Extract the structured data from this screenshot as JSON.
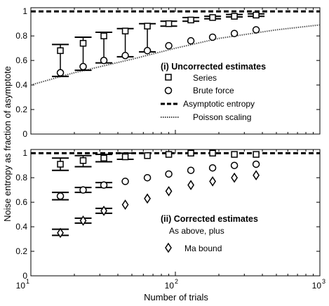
{
  "figure": {
    "ylabel": "Noise entropy as fraction of asymptote",
    "xlabel": "Number of trials",
    "x_ticks": [
      {
        "base": "10",
        "exp": "1"
      },
      {
        "base": "10",
        "exp": "2"
      },
      {
        "base": "10",
        "exp": "3"
      }
    ]
  },
  "chart_data": [
    {
      "type": "scatter",
      "panel": "top",
      "xscale": "log",
      "xlim": [
        10,
        1000
      ],
      "ylim": [
        0,
        1.03
      ],
      "yticks": [
        "0",
        "0.2",
        "0.4",
        "0.6",
        "0.8",
        "1"
      ],
      "ytick_values": [
        0,
        0.2,
        0.4,
        0.6,
        0.8,
        1
      ],
      "grid": false,
      "legend_position": "center-right",
      "legend_title": "(i) Uncorrected estimates",
      "legend": [
        {
          "label": "Series",
          "marker": "square"
        },
        {
          "label": "Brute force",
          "marker": "circle"
        },
        {
          "label": "Asymptotic entropy",
          "marker": "dashed-line"
        },
        {
          "label": "Poisson scaling",
          "marker": "dotted-line"
        }
      ],
      "asymptote": 1,
      "poisson_scaling": {
        "x": [
          10,
          20,
          50,
          100,
          200,
          500,
          1000
        ],
        "y": [
          0.4,
          0.5,
          0.61,
          0.7,
          0.78,
          0.85,
          0.89
        ]
      },
      "series": [
        {
          "name": "Series",
          "marker": "square",
          "x": [
            16,
            23,
            32,
            45,
            64,
            90,
            128,
            181,
            256,
            362
          ],
          "y": [
            0.68,
            0.74,
            0.8,
            0.84,
            0.88,
            0.9,
            0.93,
            0.95,
            0.96,
            0.97
          ]
        },
        {
          "name": "Brute force",
          "marker": "circle",
          "x": [
            16,
            23,
            32,
            45,
            64,
            90,
            128,
            181,
            256,
            362
          ],
          "y": [
            0.5,
            0.55,
            0.6,
            0.64,
            0.68,
            0.72,
            0.76,
            0.79,
            0.82,
            0.85
          ]
        }
      ],
      "error_bars": [
        {
          "x": 16,
          "low": 0.47,
          "high": 0.73
        },
        {
          "x": 23,
          "low": 0.52,
          "high": 0.79
        },
        {
          "x": 32,
          "low": 0.58,
          "high": 0.83
        },
        {
          "x": 45,
          "low": 0.63,
          "high": 0.86
        },
        {
          "x": 64,
          "low": 0.67,
          "high": 0.9
        },
        {
          "x": 90,
          "low": 0.88,
          "high": 0.92
        },
        {
          "x": 128,
          "low": 0.92,
          "high": 0.95
        },
        {
          "x": 181,
          "low": 0.94,
          "high": 0.96
        },
        {
          "x": 256,
          "low": 0.955,
          "high": 0.975
        },
        {
          "x": 362,
          "low": 0.96,
          "high": 0.98
        }
      ]
    },
    {
      "type": "scatter",
      "panel": "bottom",
      "xscale": "log",
      "xlim": [
        10,
        1000
      ],
      "ylim": [
        0,
        1.03
      ],
      "yticks": [
        "0",
        "0.2",
        "0.4",
        "0.6",
        "0.8",
        "1"
      ],
      "ytick_values": [
        0,
        0.2,
        0.4,
        0.6,
        0.8,
        1
      ],
      "grid": false,
      "legend_position": "lower-right",
      "legend_title": "(ii) Corrected estimates",
      "legend_subtitle": "As above, plus",
      "legend": [
        {
          "label": "Ma bound",
          "marker": "diamond"
        }
      ],
      "asymptote": 1,
      "series": [
        {
          "name": "Series",
          "marker": "square",
          "x": [
            16,
            23,
            32,
            45,
            64,
            90,
            128,
            181,
            256,
            362
          ],
          "y": [
            0.91,
            0.94,
            0.96,
            0.97,
            0.98,
            0.99,
            1.0,
            1.0,
            0.99,
            0.99
          ]
        },
        {
          "name": "Brute force",
          "marker": "circle",
          "x": [
            16,
            23,
            32,
            45,
            64,
            90,
            128,
            181,
            256,
            362
          ],
          "y": [
            0.65,
            0.7,
            0.74,
            0.77,
            0.8,
            0.83,
            0.86,
            0.88,
            0.9,
            0.91
          ]
        },
        {
          "name": "Ma bound",
          "marker": "diamond",
          "x": [
            16,
            23,
            32,
            45,
            64,
            90,
            128,
            181,
            256,
            362
          ],
          "y": [
            0.35,
            0.45,
            0.53,
            0.58,
            0.63,
            0.69,
            0.74,
            0.77,
            0.8,
            0.82
          ]
        }
      ],
      "error_bars": [
        {
          "x": 16,
          "low": 0.86,
          "high": 0.96
        },
        {
          "x": 23,
          "low": 0.89,
          "high": 0.98
        },
        {
          "x": 32,
          "low": 0.93,
          "high": 0.99
        },
        {
          "x": 45,
          "low": 0.95,
          "high": 1.0
        },
        {
          "x": 16,
          "low": 0.62,
          "high": 0.68
        },
        {
          "x": 23,
          "low": 0.68,
          "high": 0.72
        },
        {
          "x": 32,
          "low": 0.72,
          "high": 0.76
        },
        {
          "x": 16,
          "low": 0.33,
          "high": 0.38
        },
        {
          "x": 23,
          "low": 0.43,
          "high": 0.47
        },
        {
          "x": 32,
          "low": 0.51,
          "high": 0.55
        }
      ]
    }
  ]
}
